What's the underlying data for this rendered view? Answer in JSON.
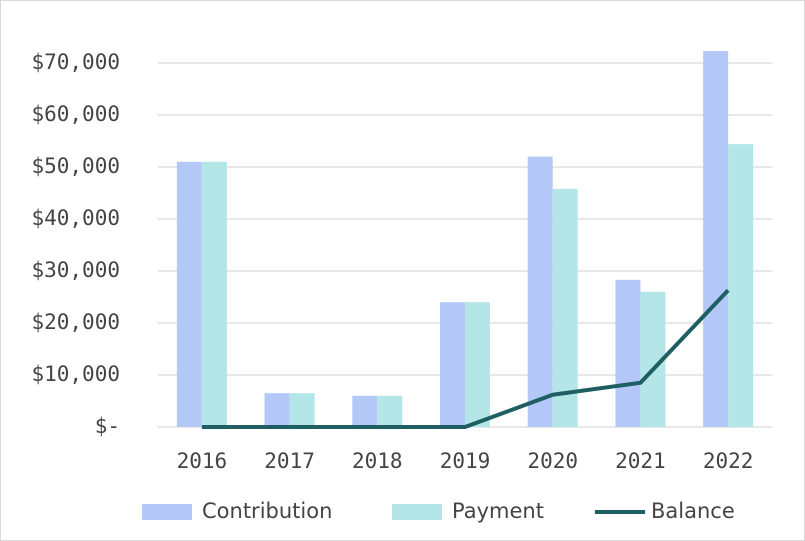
{
  "chart_data": {
    "type": "bar",
    "categories": [
      "2016",
      "2017",
      "2018",
      "2019",
      "2020",
      "2021",
      "2022"
    ],
    "series": [
      {
        "name": "Contribution",
        "color": "#b4c8f8",
        "values": [
          51000,
          6500,
          6000,
          24000,
          52000,
          28300,
          72300
        ]
      },
      {
        "name": "Payment",
        "color": "#b4e6e7",
        "values": [
          51000,
          6500,
          6000,
          24000,
          45800,
          26000,
          54400
        ]
      },
      {
        "name": "Balance",
        "color": "#1f5e62",
        "type": "line",
        "values": [
          0,
          0,
          0,
          0,
          6200,
          8500,
          26300
        ]
      }
    ],
    "ylim": [
      0,
      70000
    ],
    "yticks": [
      {
        "value": 0,
        "label": "$-"
      },
      {
        "value": 10000,
        "label": "$10,000"
      },
      {
        "value": 20000,
        "label": "$20,000"
      },
      {
        "value": 30000,
        "label": "$30,000"
      },
      {
        "value": 40000,
        "label": "$40,000"
      },
      {
        "value": 50000,
        "label": "$50,000"
      },
      {
        "value": 60000,
        "label": "$60,000"
      },
      {
        "value": 70000,
        "label": "$70,000"
      }
    ],
    "grid": true,
    "legend": "bottom"
  }
}
